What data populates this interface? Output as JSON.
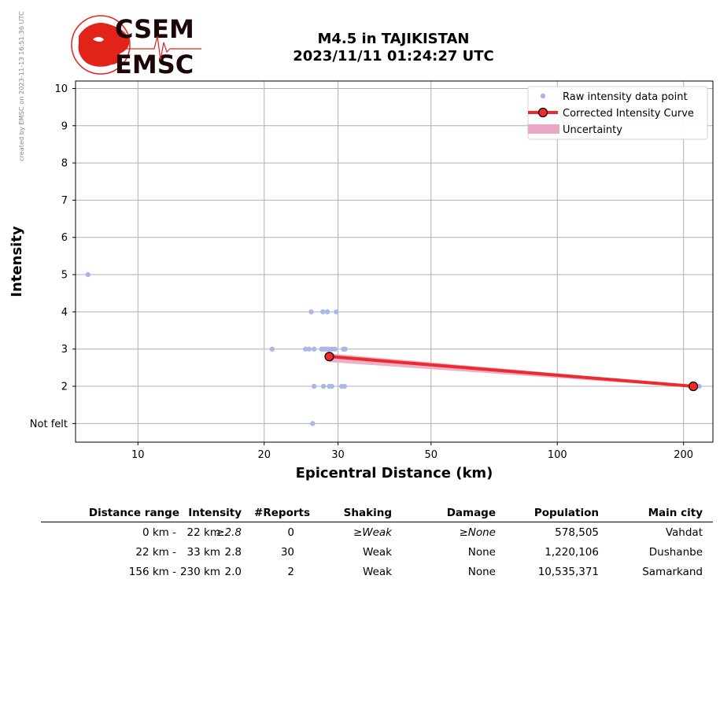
{
  "credit": "created by EMSC on 2023-11-13 16:51:36 UTC",
  "logo": {
    "top_text": "CSEM",
    "bottom_text": "EMSC",
    "color": "#e2231a"
  },
  "title": {
    "line1": "M4.5 in TAJIKISTAN",
    "line2": "2023/11/11 01:24:27 UTC"
  },
  "chart_data": {
    "type": "scatter",
    "xlabel": "Epicentral Distance (km)",
    "ylabel": "Intensity",
    "x_scale": "log",
    "xlim": [
      7.1,
      235
    ],
    "ylim": [
      0.5,
      10.2
    ],
    "x_ticks": [
      10,
      20,
      30,
      50,
      100,
      200
    ],
    "y_ticks": [
      {
        "value": 1,
        "label": "Not felt"
      },
      {
        "value": 2,
        "label": "2"
      },
      {
        "value": 3,
        "label": "3"
      },
      {
        "value": 4,
        "label": "4"
      },
      {
        "value": 5,
        "label": "5"
      },
      {
        "value": 6,
        "label": "6"
      },
      {
        "value": 7,
        "label": "7"
      },
      {
        "value": 8,
        "label": "8"
      },
      {
        "value": 9,
        "label": "9"
      },
      {
        "value": 10,
        "label": "10"
      }
    ],
    "grid": true,
    "legend_position": "top-right",
    "legend": [
      {
        "name": "Raw intensity data point",
        "marker": "dot",
        "color": "#aab8e8"
      },
      {
        "name": "Corrected Intensity Curve",
        "marker": "line-circle",
        "color": "#ee2a2f"
      },
      {
        "name": "Uncertainty",
        "marker": "band",
        "color": "#e8a8c4"
      }
    ],
    "raw_points": {
      "color": "#aab8e8",
      "x": [
        7.6,
        20.9,
        25.1,
        25.6,
        26.3,
        27.4,
        27.8,
        28.1,
        28.5,
        29.0,
        29.5,
        25.9,
        27.6,
        28.3,
        29.7,
        30.9,
        31.2,
        26.3,
        27.7,
        28.6,
        29.0,
        30.6,
        31.1,
        26.1,
        218
      ],
      "y": [
        5,
        3,
        3,
        3,
        3,
        3,
        3,
        3,
        3,
        3,
        3,
        4,
        4,
        4,
        4,
        3,
        3,
        2,
        2,
        2,
        2,
        2,
        2,
        1,
        2
      ]
    },
    "corrected_curve": {
      "color": "#ee2a2f",
      "x": [
        28.6,
        211
      ],
      "y": [
        2.8,
        2.0
      ]
    },
    "uncertainty": {
      "color": "#e8a8c4",
      "x": [
        28.6,
        211
      ],
      "upper": [
        2.88,
        2.03
      ],
      "lower": [
        2.65,
        1.97
      ]
    }
  },
  "table": {
    "headers": [
      "Distance range",
      "Intensity",
      "#Reports",
      "Shaking",
      "Damage",
      "Population",
      "Main city"
    ],
    "rows": [
      {
        "dist_from": "0 km -",
        "dist_to": "22 km",
        "intensity": "≥2.8",
        "reports": "0",
        "shaking": "≥Weak",
        "damage": "≥None",
        "population": "578,505",
        "city": "Vahdat"
      },
      {
        "dist_from": "22 km -",
        "dist_to": "33 km",
        "intensity": "2.8",
        "reports": "30",
        "shaking": "Weak",
        "damage": "None",
        "population": "1,220,106",
        "city": "Dushanbe"
      },
      {
        "dist_from": "156 km -",
        "dist_to": "230 km",
        "intensity": "2.0",
        "reports": "2",
        "shaking": "Weak",
        "damage": "None",
        "population": "10,535,371",
        "city": "Samarkand"
      }
    ]
  }
}
